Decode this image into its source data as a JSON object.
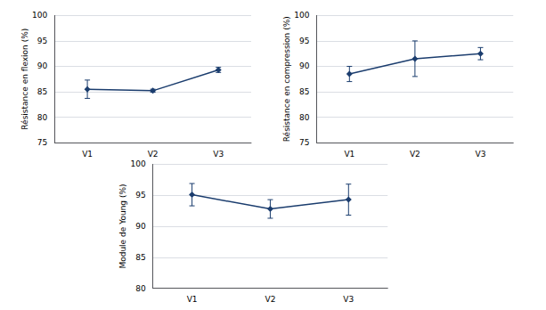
{
  "chart_data": [
    {
      "type": "line",
      "ylabel": "Résistance en flexion (%)",
      "categories": [
        "V1",
        "V2",
        "V3"
      ],
      "values": [
        85.5,
        85.2,
        89.3
      ],
      "errors": [
        1.8,
        0.3,
        0.5
      ],
      "ylim": [
        75,
        100
      ],
      "yticks": [
        75,
        80,
        85,
        90,
        95,
        100
      ],
      "grid": true,
      "color": "#1b3d6e",
      "marker": "diamond"
    },
    {
      "type": "line",
      "ylabel": "Résistance en compression (%)",
      "categories": [
        "V1",
        "V2",
        "V3"
      ],
      "values": [
        88.5,
        91.5,
        92.5
      ],
      "errors": [
        1.5,
        3.5,
        1.2
      ],
      "ylim": [
        75,
        100
      ],
      "yticks": [
        75,
        80,
        85,
        90,
        95,
        100
      ],
      "grid": true,
      "color": "#1b3d6e",
      "marker": "diamond"
    },
    {
      "type": "line",
      "ylabel": "Module de Young (%)",
      "categories": [
        "V1",
        "V2",
        "V3"
      ],
      "values": [
        95.1,
        92.8,
        94.3
      ],
      "errors": [
        1.8,
        1.5,
        2.5
      ],
      "ylim": [
        80,
        100
      ],
      "yticks": [
        80,
        85,
        90,
        95,
        100
      ],
      "grid": true,
      "color": "#1b3d6e",
      "marker": "diamond"
    }
  ]
}
